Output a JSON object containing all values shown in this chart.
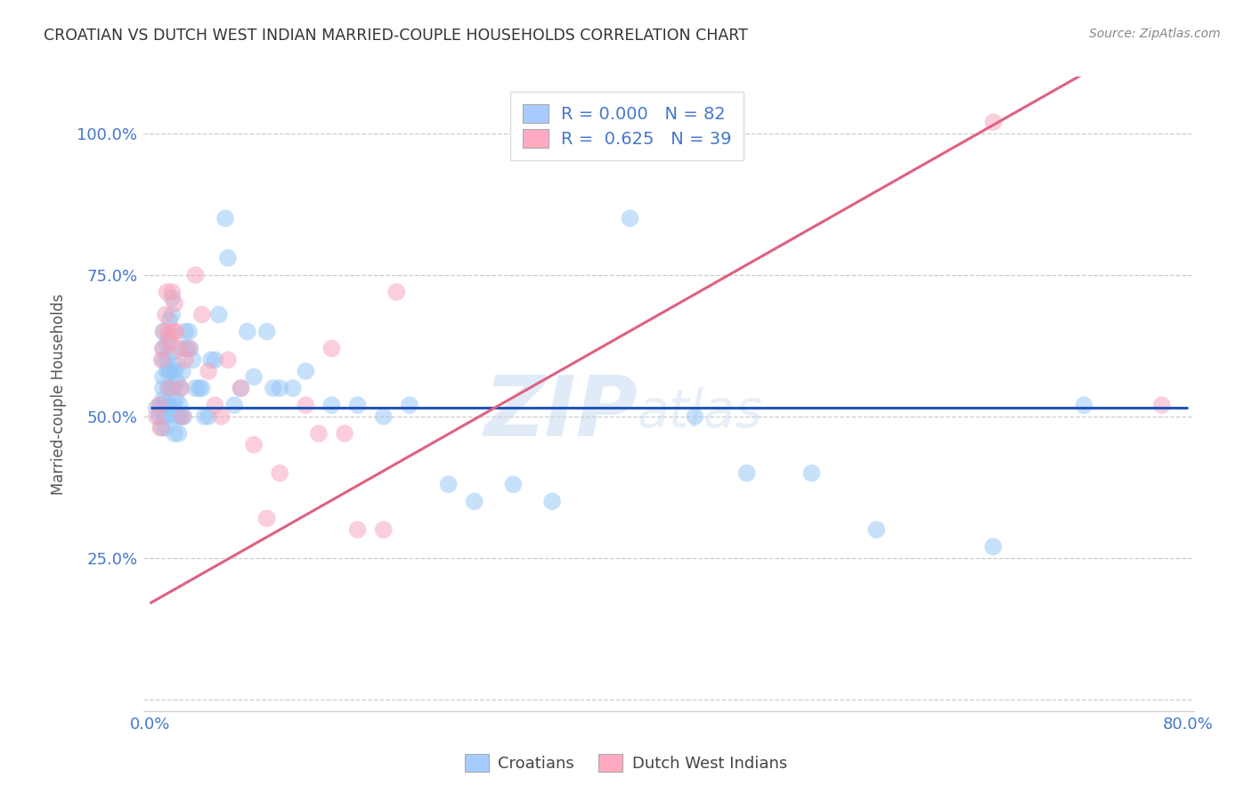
{
  "title": "CROATIAN VS DUTCH WEST INDIAN MARRIED-COUPLE HOUSEHOLDS CORRELATION CHART",
  "source": "Source: ZipAtlas.com",
  "ylabel": "Married-couple Households",
  "xlim": [
    -0.005,
    0.805
  ],
  "ylim": [
    -0.02,
    1.1
  ],
  "yticks": [
    0.0,
    0.25,
    0.5,
    0.75,
    1.0
  ],
  "ytick_labels": [
    "",
    "25.0%",
    "50.0%",
    "75.0%",
    "100.0%"
  ],
  "xticks": [
    0.0,
    0.1,
    0.2,
    0.3,
    0.4,
    0.5,
    0.6,
    0.7,
    0.8
  ],
  "xtick_labels": [
    "0.0%",
    "",
    "",
    "",
    "",
    "",
    "",
    "",
    "80.0%"
  ],
  "croatian_R": "0.000",
  "croatian_N": "82",
  "dutch_R": "0.625",
  "dutch_N": "39",
  "blue_scatter_color": "#92C5F7",
  "pink_scatter_color": "#F7A0B8",
  "blue_line_color": "#2255BB",
  "pink_line_color": "#E06080",
  "legend_blue_fill": "#A8CCFF",
  "legend_pink_fill": "#FFAAC0",
  "tick_color": "#4477CC",
  "ylabel_color": "#555555",
  "title_color": "#333333",
  "source_color": "#888888",
  "watermark_color": "#C5D8F0",
  "blue_line_y": 0.515,
  "pink_line_slope": 1.3,
  "pink_line_intercept": 0.17,
  "croatian_x": [
    0.005,
    0.007,
    0.008,
    0.009,
    0.01,
    0.01,
    0.01,
    0.01,
    0.01,
    0.01,
    0.01,
    0.011,
    0.012,
    0.012,
    0.013,
    0.013,
    0.013,
    0.014,
    0.014,
    0.015,
    0.015,
    0.015,
    0.015,
    0.016,
    0.016,
    0.017,
    0.017,
    0.018,
    0.018,
    0.019,
    0.019,
    0.02,
    0.02,
    0.021,
    0.021,
    0.022,
    0.022,
    0.023,
    0.023,
    0.024,
    0.025,
    0.025,
    0.026,
    0.027,
    0.028,
    0.03,
    0.031,
    0.033,
    0.035,
    0.038,
    0.04,
    0.042,
    0.045,
    0.047,
    0.05,
    0.053,
    0.058,
    0.06,
    0.065,
    0.07,
    0.075,
    0.08,
    0.09,
    0.095,
    0.1,
    0.11,
    0.12,
    0.14,
    0.16,
    0.18,
    0.2,
    0.23,
    0.25,
    0.28,
    0.31,
    0.37,
    0.42,
    0.46,
    0.51,
    0.56,
    0.65,
    0.72
  ],
  "croatian_y": [
    0.515,
    0.5,
    0.52,
    0.48,
    0.5,
    0.53,
    0.55,
    0.57,
    0.6,
    0.62,
    0.65,
    0.52,
    0.5,
    0.48,
    0.58,
    0.6,
    0.63,
    0.52,
    0.55,
    0.58,
    0.61,
    0.64,
    0.67,
    0.55,
    0.58,
    0.68,
    0.71,
    0.52,
    0.55,
    0.58,
    0.47,
    0.5,
    0.53,
    0.56,
    0.59,
    0.5,
    0.47,
    0.52,
    0.55,
    0.5,
    0.62,
    0.58,
    0.5,
    0.65,
    0.62,
    0.65,
    0.62,
    0.6,
    0.55,
    0.55,
    0.55,
    0.5,
    0.5,
    0.6,
    0.6,
    0.68,
    0.85,
    0.78,
    0.52,
    0.55,
    0.65,
    0.57,
    0.65,
    0.55,
    0.55,
    0.55,
    0.58,
    0.52,
    0.52,
    0.5,
    0.52,
    0.38,
    0.35,
    0.38,
    0.35,
    0.85,
    0.5,
    0.4,
    0.4,
    0.3,
    0.27,
    0.52
  ],
  "dutch_x": [
    0.005,
    0.007,
    0.008,
    0.009,
    0.01,
    0.011,
    0.012,
    0.013,
    0.014,
    0.015,
    0.016,
    0.017,
    0.018,
    0.019,
    0.02,
    0.022,
    0.024,
    0.025,
    0.027,
    0.03,
    0.035,
    0.04,
    0.045,
    0.05,
    0.055,
    0.06,
    0.07,
    0.08,
    0.09,
    0.1,
    0.12,
    0.13,
    0.14,
    0.15,
    0.16,
    0.18,
    0.19,
    0.65,
    0.78
  ],
  "dutch_y": [
    0.5,
    0.52,
    0.48,
    0.6,
    0.62,
    0.65,
    0.68,
    0.72,
    0.65,
    0.55,
    0.63,
    0.72,
    0.65,
    0.7,
    0.65,
    0.62,
    0.55,
    0.5,
    0.6,
    0.62,
    0.75,
    0.68,
    0.58,
    0.52,
    0.5,
    0.6,
    0.55,
    0.45,
    0.32,
    0.4,
    0.52,
    0.47,
    0.62,
    0.47,
    0.3,
    0.3,
    0.72,
    1.02,
    0.52
  ]
}
